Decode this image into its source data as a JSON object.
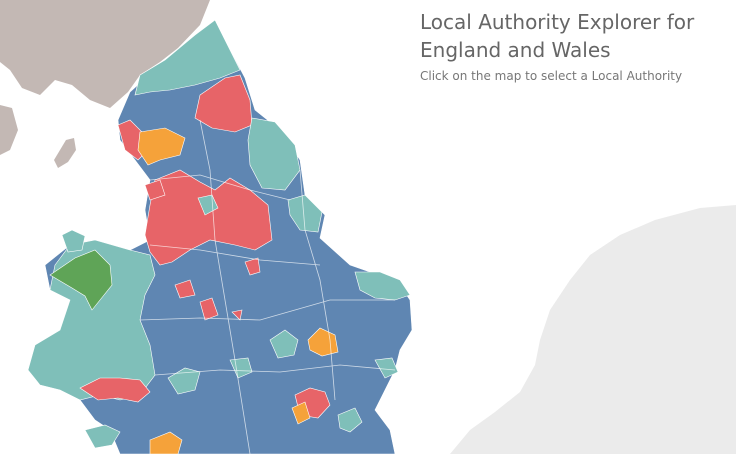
{
  "title": "Local Authority Explorer for England and Wales",
  "subtitle": "Click on the map to select a Local Authority",
  "colors": {
    "sea": "#ffffff",
    "scotland": "#c3b8b4",
    "europe": "#ebebeb",
    "blue": "#5f86b2",
    "teal": "#7fbfb9",
    "red": "#e76468",
    "orange": "#f5a23a",
    "green": "#5fa457",
    "border": "#ffffff"
  }
}
